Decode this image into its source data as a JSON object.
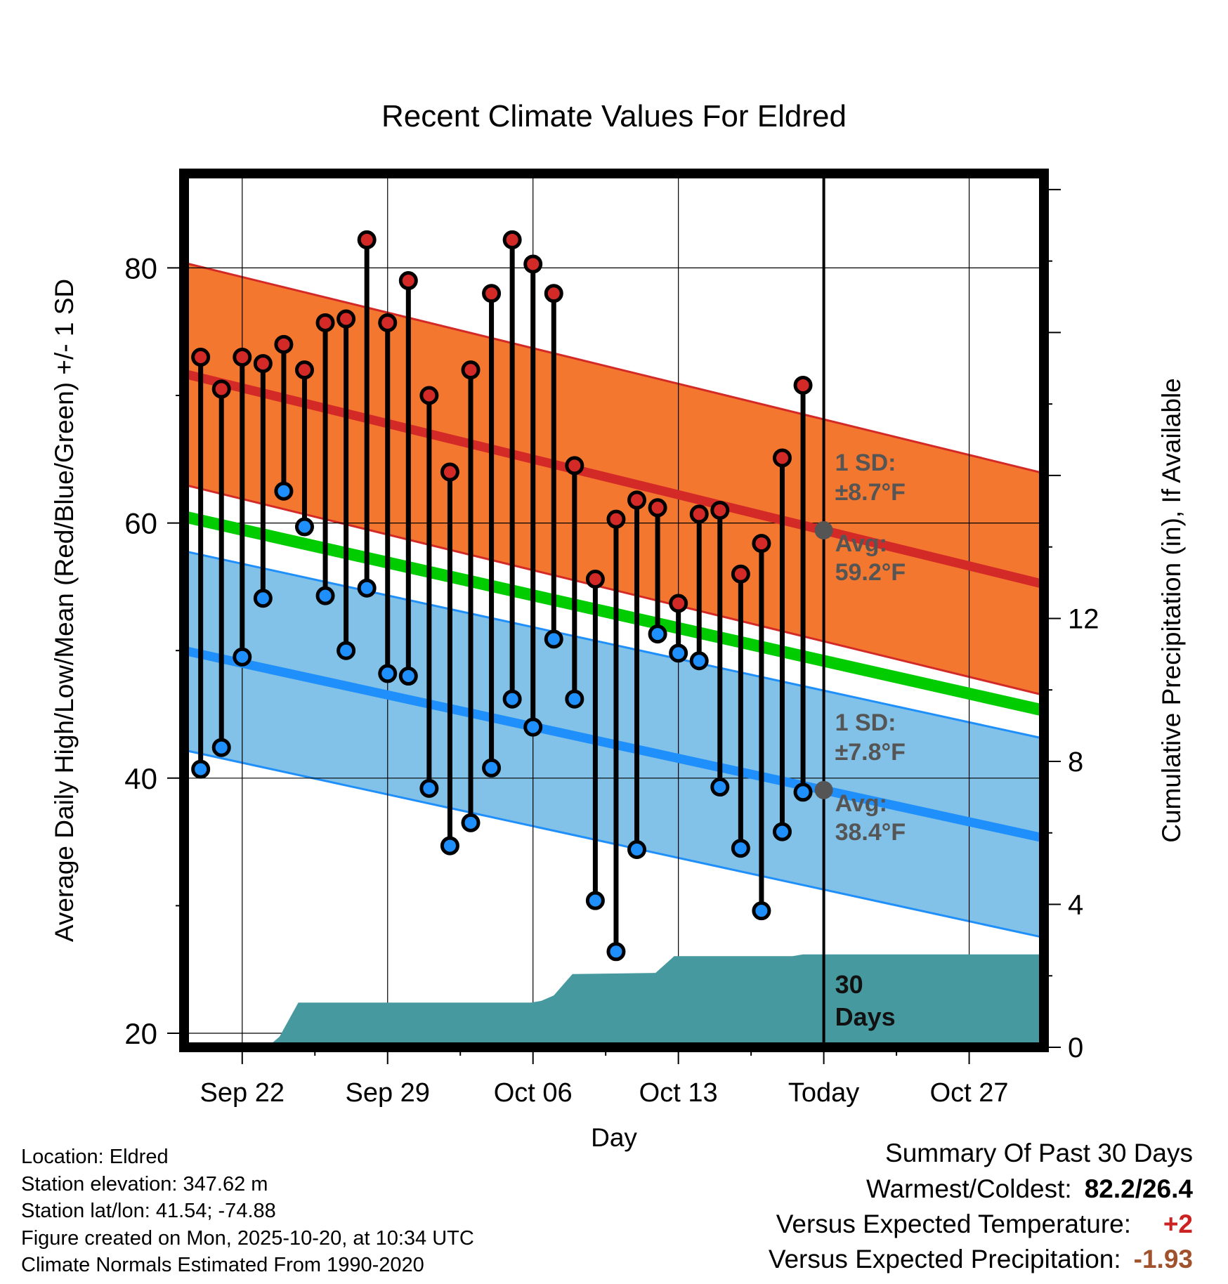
{
  "chart_data": {
    "type": "line",
    "title": "Recent Climate Values For Eldred",
    "xlabel": "Day",
    "ylabel": "Average Daily High/Low/Mean (Red/Blue/Green) +/- 1 SD",
    "y2label": "Cumulative Precipitation (in), If Available",
    "ylim": [
      18.9,
      87.4
    ],
    "y2lim": [
      0,
      24.45
    ],
    "xlim": [
      -0.8,
      40.6
    ],
    "yticks": [
      20,
      40,
      60,
      80
    ],
    "y2ticks": [
      0,
      4,
      8,
      12
    ],
    "xticks": [
      {
        "x": 2,
        "label": "Sep 22"
      },
      {
        "x": 9,
        "label": "Sep 29"
      },
      {
        "x": 16,
        "label": "Oct 06"
      },
      {
        "x": 23,
        "label": "Oct 13"
      },
      {
        "x": 30,
        "label": "Today"
      },
      {
        "x": 37,
        "label": "Oct 27"
      }
    ],
    "today_x": 30,
    "normals": {
      "high": {
        "start": 71.7,
        "end": 55.2,
        "sd": 8.7
      },
      "low": {
        "start": 50.0,
        "end": 35.3,
        "sd": 7.8
      },
      "mean": {
        "start": 60.5,
        "end": 45.3
      },
      "high_band_color": "#f4772f",
      "high_line_color": "#d42a27",
      "low_band_color": "#82c2e8",
      "low_line_color": "#1f8ffb",
      "mean_color": "#00cc00"
    },
    "daily_high": [
      73,
      70.5,
      73,
      72.5,
      74,
      72,
      75.7,
      76,
      82.2,
      75.7,
      79,
      70,
      64,
      72,
      78,
      82.2,
      80.3,
      78,
      64.5,
      55.6,
      60.3,
      61.8,
      61.2,
      53.7,
      60.7,
      61,
      56,
      58.4,
      65.1,
      70.8
    ],
    "daily_low": [
      40.7,
      42.4,
      49.5,
      54.1,
      62.5,
      59.7,
      54.3,
      50,
      54.9,
      48.2,
      48,
      39.2,
      34.7,
      36.5,
      40.8,
      46.2,
      44,
      50.9,
      46.2,
      30.4,
      26.4,
      34.4,
      51.3,
      49.8,
      49.2,
      39.3,
      34.5,
      29.6,
      35.8,
      38.9
    ],
    "precip_cumulative": [
      [
        -0.8,
        0
      ],
      [
        3.2,
        0
      ],
      [
        3.8,
        0.3
      ],
      [
        4.7,
        1.25
      ],
      [
        15.9,
        1.25
      ],
      [
        16.4,
        1.3
      ],
      [
        17.0,
        1.45
      ],
      [
        17.9,
        2.05
      ],
      [
        21.9,
        2.08
      ],
      [
        22.8,
        2.55
      ],
      [
        28.5,
        2.55
      ],
      [
        29.0,
        2.6
      ],
      [
        40.6,
        2.6
      ]
    ],
    "precip_color": "#4799a0",
    "annotations": {
      "high_sd": "1 SD:",
      "high_sd_val": "±8.7°F",
      "high_avg": "Avg:",
      "high_avg_val": "59.2°F",
      "low_sd": "1 SD:",
      "low_sd_val": "±7.8°F",
      "low_avg": "Avg:",
      "low_avg_val": "38.4°F",
      "days_num": "30",
      "days_word": "Days"
    }
  },
  "info": {
    "location": "Location: Eldred",
    "elevation": "Station elevation: 347.62 m",
    "latlon": "Station lat/lon: 41.54; -74.88",
    "created": "Figure created on Mon, 2025-10-20, at 10:34 UTC",
    "normals": "Climate Normals Estimated From 1990-2020"
  },
  "summary": {
    "title": "Summary Of Past 30 Days",
    "warm_cold_label": "Warmest/Coldest:",
    "warm_cold_value": "82.2/26.4",
    "temp_label": "Versus Expected Temperature:",
    "temp_value": "+2",
    "temp_color": "#cc2222",
    "precip_label": "Versus Expected Precipitation:",
    "precip_value": "-1.93",
    "precip_color": "#a0522d"
  }
}
